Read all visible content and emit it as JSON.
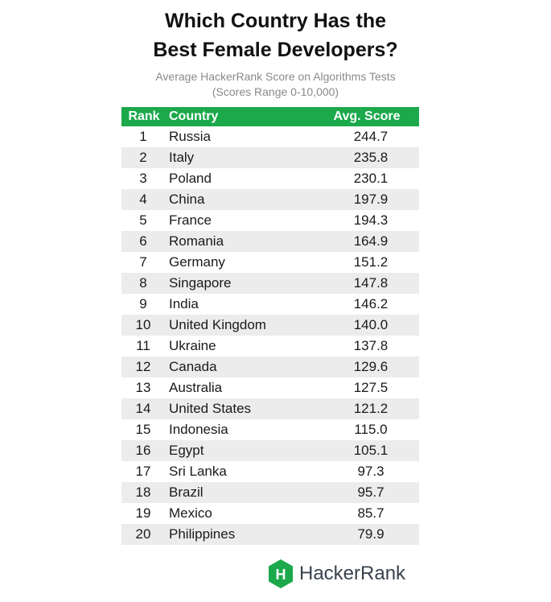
{
  "chart_data": {
    "type": "table",
    "title_lines": [
      "Which Country Has the",
      "Best Female Developers?"
    ],
    "subtitle_lines": [
      "Average HackerRank Score on Algorithms Tests",
      "(Scores Range 0-10,000)"
    ],
    "columns": [
      "Rank",
      "Country",
      "Avg. Score"
    ],
    "rows": [
      {
        "rank": "1",
        "country": "Russia",
        "score": "244.7"
      },
      {
        "rank": "2",
        "country": "Italy",
        "score": "235.8"
      },
      {
        "rank": "3",
        "country": "Poland",
        "score": "230.1"
      },
      {
        "rank": "4",
        "country": "China",
        "score": "197.9"
      },
      {
        "rank": "5",
        "country": "France",
        "score": "194.3"
      },
      {
        "rank": "6",
        "country": "Romania",
        "score": "164.9"
      },
      {
        "rank": "7",
        "country": "Germany",
        "score": "151.2"
      },
      {
        "rank": "8",
        "country": "Singapore",
        "score": "147.8"
      },
      {
        "rank": "9",
        "country": "India",
        "score": "146.2"
      },
      {
        "rank": "10",
        "country": "United Kingdom",
        "score": "140.0"
      },
      {
        "rank": "11",
        "country": "Ukraine",
        "score": "137.8"
      },
      {
        "rank": "12",
        "country": "Canada",
        "score": "129.6"
      },
      {
        "rank": "13",
        "country": "Australia",
        "score": "127.5"
      },
      {
        "rank": "14",
        "country": "United States",
        "score": "121.2"
      },
      {
        "rank": "15",
        "country": "Indonesia",
        "score": "115.0"
      },
      {
        "rank": "16",
        "country": "Egypt",
        "score": "105.1"
      },
      {
        "rank": "17",
        "country": "Sri Lanka",
        "score": "97.3"
      },
      {
        "rank": "18",
        "country": "Brazil",
        "score": "95.7"
      },
      {
        "rank": "19",
        "country": "Mexico",
        "score": "85.7"
      },
      {
        "rank": "20",
        "country": "Philippines",
        "score": "79.9"
      }
    ]
  },
  "logo": {
    "text": "HackerRank",
    "icon": "hackerrank-hexagon-icon",
    "mark_letter": "H",
    "color": "#1ba94c"
  },
  "colors": {
    "header_bg": "#1ba94c",
    "row_shade": "#ececec",
    "subtitle": "#8a8a8a"
  }
}
